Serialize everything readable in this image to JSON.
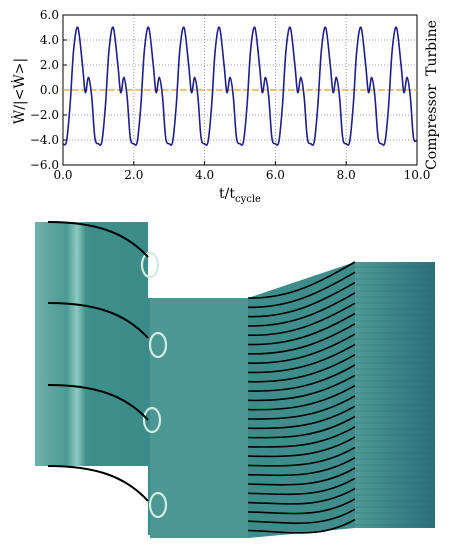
{
  "chart_data": {
    "type": "line",
    "ylabel": "Ẇ/|<Ẇ>|",
    "xlabel_main": "t/t",
    "xlabel_sub": "cycle",
    "right_label_top": "Turbine",
    "right_label_bottom": "Compressor",
    "xlim": [
      0.0,
      10.0
    ],
    "ylim": [
      -6.0,
      6.0
    ],
    "x_ticks": [
      0.0,
      2.0,
      4.0,
      6.0,
      8.0,
      10.0
    ],
    "x_tick_labels": [
      "0.0",
      "2.0",
      "4.0",
      "6.0",
      "8.0",
      "10.0"
    ],
    "y_ticks": [
      6.0,
      4.0,
      2.0,
      0.0,
      -2.0,
      -4.0,
      -6.0
    ],
    "y_tick_labels": [
      "6.0",
      "4.0",
      "2.0",
      "0.0",
      "−2.0",
      "−4.0",
      "−6.0"
    ],
    "grid": true,
    "series": [
      {
        "color": "#1f1f8a",
        "x": [
          0.0,
          0.1,
          0.2,
          0.3,
          0.42,
          0.55,
          0.63,
          0.72,
          0.81,
          0.9,
          1.0,
          1.1,
          1.2,
          1.3,
          1.42,
          1.55,
          1.63,
          1.72,
          1.81,
          1.9,
          2.0,
          2.1,
          2.2,
          2.3,
          2.42,
          2.55,
          2.63,
          2.72,
          2.81,
          2.9,
          3.0,
          3.1,
          3.2,
          3.3,
          3.42,
          3.55,
          3.63,
          3.72,
          3.81,
          3.9,
          4.0,
          4.1,
          4.2,
          4.3,
          4.42,
          4.55,
          4.63,
          4.72,
          4.81,
          4.9,
          5.0,
          5.1,
          5.2,
          5.3,
          5.42,
          5.55,
          5.63,
          5.72,
          5.81,
          5.9,
          6.0,
          6.1,
          6.2,
          6.3,
          6.42,
          6.55,
          6.63,
          6.72,
          6.81,
          6.9,
          7.0,
          7.1,
          7.2,
          7.3,
          7.42,
          7.55,
          7.63,
          7.72,
          7.81,
          7.9,
          8.0,
          8.1,
          8.2,
          8.3,
          8.42,
          8.55,
          8.63,
          8.72,
          8.81,
          8.9,
          9.0,
          9.1,
          9.2,
          9.3,
          9.42,
          9.55,
          9.63,
          9.72,
          9.81,
          9.9,
          10.0
        ],
        "y": [
          -4.3,
          -4.1,
          -1.2,
          3.2,
          5.0,
          2.0,
          -0.2,
          1.0,
          -0.5,
          -3.8,
          -4.3,
          -4.1,
          -1.2,
          3.2,
          5.0,
          2.0,
          -0.2,
          1.0,
          -0.5,
          -3.8,
          -4.3,
          -4.1,
          -1.2,
          3.2,
          5.0,
          2.0,
          -0.2,
          1.0,
          -0.5,
          -3.8,
          -4.3,
          -4.1,
          -1.2,
          3.2,
          5.0,
          2.0,
          -0.2,
          1.0,
          -0.5,
          -3.8,
          -4.3,
          -4.1,
          -1.2,
          3.2,
          5.0,
          2.0,
          -0.2,
          1.0,
          -0.5,
          -3.8,
          -4.3,
          -4.1,
          -1.2,
          3.2,
          5.0,
          2.0,
          -0.2,
          1.0,
          -0.5,
          -3.8,
          -4.3,
          -4.1,
          -1.2,
          3.2,
          5.0,
          2.0,
          -0.2,
          1.0,
          -0.5,
          -3.8,
          -4.3,
          -4.1,
          -1.2,
          3.2,
          5.0,
          2.0,
          -0.2,
          1.0,
          -0.5,
          -3.8,
          -4.3,
          -4.1,
          -1.2,
          3.2,
          5.0,
          2.0,
          -0.2,
          1.0,
          -0.5,
          -3.8,
          -4.3,
          -4.1,
          -1.2,
          3.2,
          5.0,
          2.0,
          -0.2,
          1.0,
          -0.5,
          -3.8,
          -4.0
        ]
      }
    ],
    "reference_line": {
      "y": 0.0,
      "color": "#e0a020",
      "style": "dashed"
    }
  },
  "figure": {
    "bottom_panel": "flow field visualization",
    "colors": {
      "flow_base": "#3f8f8c",
      "flow_dark": "#1f5e66",
      "flow_light": "#9fcfc4",
      "blade": "#000000"
    }
  }
}
